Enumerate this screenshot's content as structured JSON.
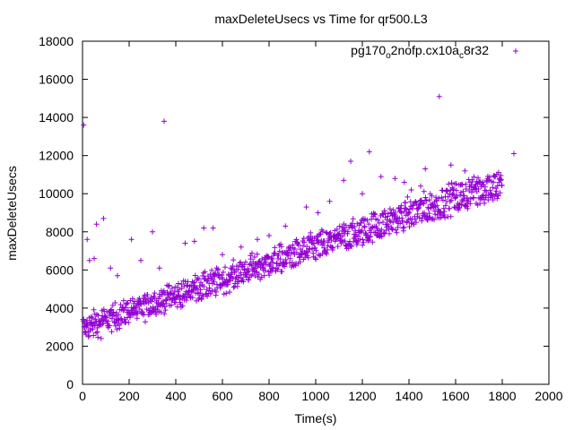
{
  "chart_data": {
    "type": "scatter",
    "title": "maxDeleteUsecs vs Time for qr500.L3",
    "xlabel": "Time(s)",
    "ylabel": "maxDeleteUsecs",
    "xlim": [
      0,
      2000
    ],
    "ylim": [
      0,
      18000
    ],
    "x_ticks": [
      0,
      200,
      400,
      600,
      800,
      1000,
      1200,
      1400,
      1600,
      1800,
      2000
    ],
    "y_ticks": [
      0,
      2000,
      4000,
      6000,
      8000,
      10000,
      12000,
      14000,
      16000,
      18000
    ],
    "legend": {
      "position": "top-right",
      "label_parts": [
        {
          "text": "pg170",
          "sub": false
        },
        {
          "text": "o",
          "sub": true
        },
        {
          "text": "2nofp.cx10a",
          "sub": false
        },
        {
          "text": "c",
          "sub": true
        },
        {
          "text": "8r32",
          "sub": false
        }
      ]
    },
    "marker": "+",
    "color": "#9400d3",
    "series": [
      {
        "name": "pg170_o2nofp.cx10a_c8r32",
        "trend": {
          "description": "two interleaved bands rising roughly linearly",
          "lower_band": [
            [
              0,
              2700
            ],
            [
              1800,
              10200
            ]
          ],
          "upper_band": [
            [
              0,
              3200
            ],
            [
              1800,
              11000
            ]
          ]
        },
        "outliers": [
          [
            5,
            13600
          ],
          [
            350,
            13800
          ],
          [
            1530,
            15100
          ],
          [
            1230,
            12200
          ],
          [
            1850,
            12100
          ],
          [
            1150,
            11700
          ],
          [
            1470,
            11300
          ],
          [
            1580,
            11500
          ],
          [
            60,
            8400
          ],
          [
            90,
            8700
          ],
          [
            20,
            7600
          ],
          [
            300,
            8000
          ],
          [
            210,
            7600
          ],
          [
            520,
            8200
          ],
          [
            560,
            8200
          ],
          [
            440,
            7400
          ],
          [
            480,
            7500
          ],
          [
            960,
            9300
          ],
          [
            1010,
            9000
          ],
          [
            1120,
            10700
          ],
          [
            1280,
            10900
          ],
          [
            1340,
            10800
          ],
          [
            1410,
            10200
          ],
          [
            1450,
            10400
          ],
          [
            1640,
            11200
          ],
          [
            80,
            2400
          ],
          [
            30,
            6500
          ],
          [
            50,
            6600
          ],
          [
            120,
            6100
          ],
          [
            150,
            5700
          ],
          [
            250,
            6500
          ],
          [
            330,
            6100
          ],
          [
            600,
            6800
          ],
          [
            680,
            7200
          ],
          [
            750,
            7600
          ],
          [
            800,
            7800
          ],
          [
            870,
            8300
          ],
          [
            1060,
            9600
          ],
          [
            1200,
            10000
          ],
          [
            1380,
            10600
          ]
        ]
      }
    ]
  }
}
